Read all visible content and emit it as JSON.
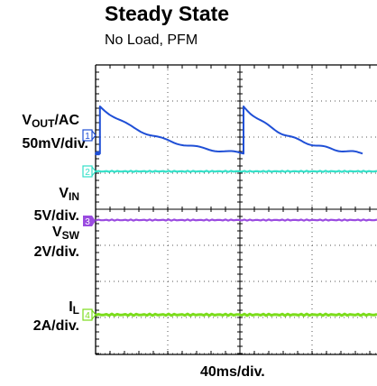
{
  "title": "Steady State",
  "subtitle": "No Load, PFM",
  "x_scale_label": "40ms/div.",
  "channels": [
    {
      "name_main": "V",
      "name_sub": "OUT",
      "name_tail": "/AC",
      "scale": "50mV/div.",
      "marker": "1",
      "color": "#1f4fd6"
    },
    {
      "name_main": "V",
      "name_sub": "IN",
      "name_tail": "",
      "scale": "5V/div.",
      "marker": "2",
      "color": "#33e0c8"
    },
    {
      "name_main": "V",
      "name_sub": "SW",
      "name_tail": "",
      "scale": "2V/div.",
      "marker": "3",
      "color": "#9a4be0"
    },
    {
      "name_main": "I",
      "name_sub": "L",
      "name_tail": "",
      "scale": "2A/div.",
      "marker": "4",
      "color": "#7cdc1c"
    }
  ],
  "chart_data": {
    "type": "line",
    "title": "Steady State",
    "subtitle": "No Load, PFM",
    "xlabel": "40ms/div.",
    "grid": true,
    "series": [
      {
        "name": "VOUT/AC",
        "scale": "50mV/div.",
        "x": [
          0,
          0.06,
          0.06,
          2.05,
          2.05,
          3.7
        ],
        "y": [
          -0.5,
          -0.5,
          0.8,
          -0.5,
          0.8,
          -0.5
        ]
      },
      {
        "name": "VIN",
        "scale": "5V/div.",
        "x": [
          0,
          3.7
        ],
        "y": [
          0,
          0
        ]
      },
      {
        "name": "VSW",
        "scale": "2V/div.",
        "x": [
          0,
          3.7
        ],
        "y": [
          0,
          0
        ]
      },
      {
        "name": "IL",
        "scale": "2A/div.",
        "x": [
          0,
          3.7
        ],
        "y": [
          0,
          0
        ]
      }
    ]
  }
}
